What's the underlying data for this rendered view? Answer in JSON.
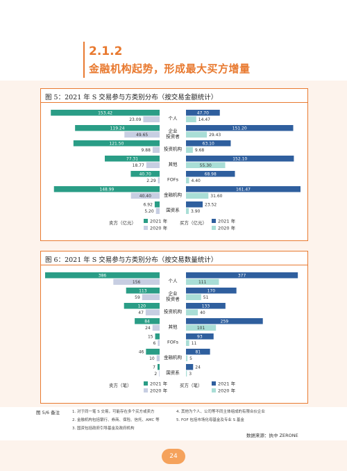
{
  "section": {
    "number": "2.1.2",
    "title": "金融机构起势，形成最大买方增量"
  },
  "notes": {
    "head": "图 5/6 备注",
    "items": [
      "1. 对于同一笔 S 交易，可能存在多个买方或卖方",
      "2. 金融机构包括银行、券商、保险、信托、AMC 等",
      "3. 国资包括政府引导基金及政府机构",
      "4. 其他为个人、公司等不同主体组成的有限合伙企业",
      "5. FOF 包括市场化母基金及专业 S 基金"
    ]
  },
  "source": "数据来源：执中 ZERONE",
  "page_number": "24",
  "colors": {
    "seller_2021": "#2a9d86",
    "seller_2020": "#c7cee2",
    "buyer_2021": "#2f5f9e",
    "buyer_2020": "#a9ded6",
    "accent": "#e8792f"
  },
  "chart_data": [
    {
      "type": "bar",
      "title": "图 5：2021 年 S 交易参与方类别分布（按交易金额统计）",
      "categories": [
        "个人",
        "企业\n投资者",
        "投资机构",
        "其他",
        "FOFs",
        "金融机构",
        "国资系"
      ],
      "seller_label": "卖方（亿元）",
      "buyer_label": "买方（亿元）",
      "series": [
        {
          "name": "2021 年",
          "side": "seller",
          "values": [
            153.42,
            119.24,
            121.5,
            77.31,
            40.7,
            148.99,
            6.92
          ],
          "labels": [
            "153.42",
            "119.24",
            "121.50",
            "77.31",
            "40.70",
            "148.99",
            "6.92"
          ]
        },
        {
          "name": "2020 年",
          "side": "seller",
          "values": [
            23.09,
            49.65,
            9.88,
            18.77,
            2.29,
            40.4,
            5.2
          ],
          "labels": [
            "23.09",
            "49.65",
            "9.88",
            "18.77",
            "2.29",
            "40.40",
            "5.20"
          ]
        },
        {
          "name": "2021 年",
          "side": "buyer",
          "values": [
            47.7,
            151.2,
            63.1,
            152.1,
            68.98,
            161.47,
            23.52
          ],
          "labels": [
            "47.70",
            "151.20",
            "63.10",
            "152.10",
            "68.98",
            "161.47",
            "23.52"
          ]
        },
        {
          "name": "2020 年",
          "side": "buyer",
          "values": [
            14.47,
            29.43,
            9.68,
            55.3,
            4.4,
            31.6,
            3.9
          ],
          "labels": [
            "14.47",
            "29.43",
            "9.68",
            "55.30",
            "4.40",
            "31.60",
            "3.90"
          ]
        }
      ]
    },
    {
      "type": "bar",
      "title": "图 6：2021 年 S 交易参与方类别分布（按交易数量统计）",
      "categories": [
        "个人",
        "企业\n投资者",
        "投资机构",
        "其他",
        "FOFs",
        "金融机构",
        "国资系"
      ],
      "seller_label": "卖方（笔）",
      "buyer_label": "买方（笔）",
      "series": [
        {
          "name": "2021 年",
          "side": "seller",
          "values": [
            386,
            113,
            120,
            84,
            15,
            46,
            7
          ],
          "labels": [
            "386",
            "113",
            "120",
            "84",
            "15",
            "46",
            "7"
          ]
        },
        {
          "name": "2020 年",
          "side": "seller",
          "values": [
            156,
            59,
            47,
            24,
            6,
            10,
            2
          ],
          "labels": [
            "156",
            "59",
            "47",
            "24",
            "6",
            "10",
            "2"
          ]
        },
        {
          "name": "2021 年",
          "side": "buyer",
          "values": [
            377,
            170,
            133,
            259,
            93,
            81,
            24
          ],
          "labels": [
            "377",
            "170",
            "133",
            "259",
            "93",
            "81",
            "24"
          ]
        },
        {
          "name": "2020 年",
          "side": "buyer",
          "values": [
            111,
            51,
            40,
            101,
            11,
            5,
            3
          ],
          "labels": [
            "111",
            "51",
            "40",
            "101",
            "11",
            "5",
            "3"
          ]
        }
      ]
    }
  ]
}
